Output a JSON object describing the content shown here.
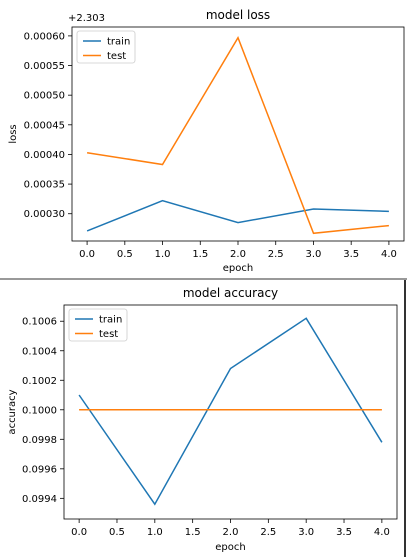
{
  "chart_data": [
    {
      "type": "line",
      "title": "model loss",
      "xlabel": "epoch",
      "ylabel": "loss",
      "offset_text": "+2.303",
      "x": [
        0,
        1,
        2,
        3,
        4
      ],
      "xticks": [
        0.0,
        0.5,
        1.0,
        1.5,
        2.0,
        2.5,
        3.0,
        3.5,
        4.0
      ],
      "xtick_labels": [
        "0.0",
        "0.5",
        "1.0",
        "1.5",
        "2.0",
        "2.5",
        "3.0",
        "3.5",
        "4.0"
      ],
      "yticks": [
        0.0003,
        0.00035,
        0.0004,
        0.00045,
        0.0005,
        0.00055,
        0.0006
      ],
      "ytick_labels": [
        "0.00030",
        "0.00035",
        "0.00040",
        "0.00045",
        "0.00050",
        "0.00055",
        "0.00060"
      ],
      "xlim": [
        -0.2,
        4.2
      ],
      "ylim": [
        0.000254,
        0.000615
      ],
      "legend_position": "upper-left",
      "series": [
        {
          "name": "train",
          "color": "#1f77b4",
          "values": [
            0.000271,
            0.000322,
            0.000285,
            0.000308,
            0.000304
          ]
        },
        {
          "name": "test",
          "color": "#ff7f0e",
          "values": [
            0.000403,
            0.000383,
            0.000597,
            0.000267,
            0.00028
          ]
        }
      ]
    },
    {
      "type": "line",
      "title": "model accuracy",
      "xlabel": "epoch",
      "ylabel": "accuracy",
      "x": [
        0,
        1,
        2,
        3,
        4
      ],
      "xticks": [
        0.0,
        0.5,
        1.0,
        1.5,
        2.0,
        2.5,
        3.0,
        3.5,
        4.0
      ],
      "xtick_labels": [
        "0.0",
        "0.5",
        "1.0",
        "1.5",
        "2.0",
        "2.5",
        "3.0",
        "3.5",
        "4.0"
      ],
      "yticks": [
        0.0994,
        0.0996,
        0.0998,
        0.1,
        0.1002,
        0.1004,
        0.1006
      ],
      "ytick_labels": [
        "0.0994",
        "0.0996",
        "0.0998",
        "0.1000",
        "0.1002",
        "0.1004",
        "0.1006"
      ],
      "xlim": [
        -0.2,
        4.2
      ],
      "ylim": [
        0.09926,
        0.10071
      ],
      "legend_position": "upper-left",
      "series": [
        {
          "name": "train",
          "color": "#1f77b4",
          "values": [
            0.1001,
            0.09936,
            0.10028,
            0.10062,
            0.09978
          ]
        },
        {
          "name": "test",
          "color": "#ff7f0e",
          "values": [
            0.1,
            0.1,
            0.1,
            0.1,
            0.1
          ]
        }
      ]
    }
  ]
}
